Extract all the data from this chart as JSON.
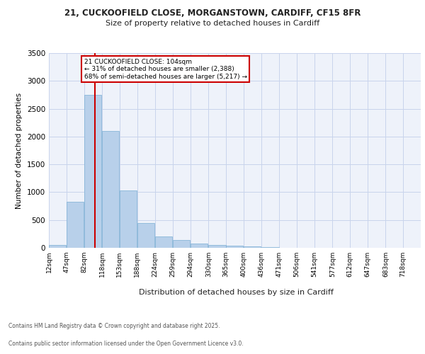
{
  "title_line1": "21, CUCKOOFIELD CLOSE, MORGANSTOWN, CARDIFF, CF15 8FR",
  "title_line2": "Size of property relative to detached houses in Cardiff",
  "xlabel": "Distribution of detached houses by size in Cardiff",
  "ylabel": "Number of detached properties",
  "bar_color": "#b8d0ea",
  "bar_edge_color": "#7aafd4",
  "background_color": "#ffffff",
  "plot_bg_color": "#eef2fa",
  "grid_color": "#c8d4ec",
  "bins": [
    12,
    47,
    82,
    118,
    153,
    188,
    224,
    259,
    294,
    330,
    365,
    400,
    436,
    471,
    506,
    541,
    577,
    612,
    647,
    683,
    718
  ],
  "bin_labels": [
    "12sqm",
    "47sqm",
    "82sqm",
    "118sqm",
    "153sqm",
    "188sqm",
    "224sqm",
    "259sqm",
    "294sqm",
    "330sqm",
    "365sqm",
    "400sqm",
    "436sqm",
    "471sqm",
    "506sqm",
    "541sqm",
    "577sqm",
    "612sqm",
    "647sqm",
    "683sqm",
    "718sqm"
  ],
  "bar_heights": [
    55,
    830,
    2750,
    2100,
    1030,
    450,
    200,
    140,
    80,
    45,
    35,
    20,
    10,
    5,
    0,
    0,
    0,
    0,
    0,
    0
  ],
  "red_line_x": 104,
  "annotation_text": "21 CUCKOOFIELD CLOSE: 104sqm\n← 31% of detached houses are smaller (2,388)\n68% of semi-detached houses are larger (5,217) →",
  "annotation_box_color": "#ffffff",
  "annotation_border_color": "#cc0000",
  "ylim": [
    0,
    3500
  ],
  "yticks": [
    0,
    500,
    1000,
    1500,
    2000,
    2500,
    3000,
    3500
  ],
  "red_line_color": "#cc0000",
  "footer_line1": "Contains HM Land Registry data © Crown copyright and database right 2025.",
  "footer_line2": "Contains public sector information licensed under the Open Government Licence v3.0."
}
